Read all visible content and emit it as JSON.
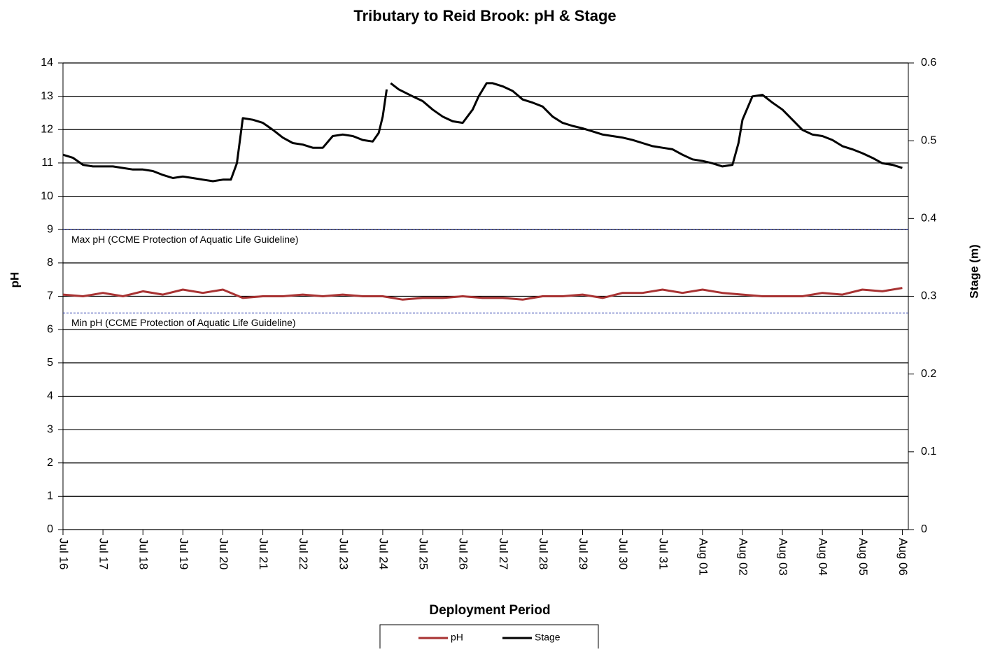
{
  "chart_data": {
    "type": "line",
    "title": "Tributary to Reid Brook: pH & Stage",
    "x_label": "Deployment Period",
    "y_label": "pH",
    "y2_label": "Stage (m)",
    "xlim": [
      0,
      21.15
    ],
    "xticks": [
      {
        "value": 0,
        "label": "Jul 16"
      },
      {
        "value": 1,
        "label": "Jul 17"
      },
      {
        "value": 2,
        "label": "Jul 18"
      },
      {
        "value": 3,
        "label": "Jul 19"
      },
      {
        "value": 4,
        "label": "Jul 20"
      },
      {
        "value": 5,
        "label": "Jul 21"
      },
      {
        "value": 6,
        "label": "Jul 22"
      },
      {
        "value": 7,
        "label": "Jul 23"
      },
      {
        "value": 8,
        "label": "Jul 24"
      },
      {
        "value": 9,
        "label": "Jul 25"
      },
      {
        "value": 10,
        "label": "Jul 26"
      },
      {
        "value": 11,
        "label": "Jul 27"
      },
      {
        "value": 12,
        "label": "Jul 28"
      },
      {
        "value": 13,
        "label": "Jul 29"
      },
      {
        "value": 14,
        "label": "Jul 30"
      },
      {
        "value": 15,
        "label": "Jul 31"
      },
      {
        "value": 16,
        "label": "Aug 01"
      },
      {
        "value": 17,
        "label": "Aug 02"
      },
      {
        "value": 18,
        "label": "Aug 03"
      },
      {
        "value": 19,
        "label": "Aug 04"
      },
      {
        "value": 20,
        "label": "Aug 05"
      },
      {
        "value": 21,
        "label": "Aug 06"
      }
    ],
    "ylim": [
      0,
      14
    ],
    "yticks": [
      0,
      1,
      2,
      3,
      4,
      5,
      6,
      7,
      8,
      9,
      10,
      11,
      12,
      13,
      14
    ],
    "y2lim": [
      0,
      0.6
    ],
    "y2ticks": [
      0,
      0.1,
      0.2,
      0.3,
      0.4,
      0.5,
      0.6
    ],
    "grid": true,
    "reference_lines": [
      {
        "value": 9,
        "label": "Max pH  (CCME  Protection of Aquatic Life Guideline)",
        "color": "#2233aa"
      },
      {
        "value": 6.5,
        "label": "Min pH  (CCME  Protection of Aquatic Life Guideline)",
        "color": "#2233aa"
      }
    ],
    "series": [
      {
        "name": "pH",
        "color": "#a83232",
        "x": [
          0,
          0.5,
          1,
          1.5,
          2,
          2.5,
          3,
          3.5,
          4,
          4.5,
          5,
          5.5,
          6,
          6.5,
          7,
          7.5,
          8,
          8.5,
          9,
          9.5,
          10,
          10.5,
          11,
          11.5,
          12,
          12.5,
          13,
          13.5,
          14,
          14.5,
          15,
          15.5,
          16,
          16.5,
          17,
          17.5,
          18,
          18.5,
          19,
          19.5,
          20,
          20.5,
          21
        ],
        "values": [
          7.05,
          7.0,
          7.1,
          7.0,
          7.15,
          7.05,
          7.2,
          7.1,
          7.2,
          6.95,
          7.0,
          7.0,
          7.05,
          7.0,
          7.05,
          7.0,
          7.0,
          6.9,
          6.95,
          6.95,
          7.0,
          6.95,
          6.95,
          6.9,
          7.0,
          7.0,
          7.05,
          6.95,
          7.1,
          7.1,
          7.2,
          7.1,
          7.2,
          7.1,
          7.05,
          7.0,
          7.0,
          7.0,
          7.1,
          7.05,
          7.2,
          7.15,
          7.25
        ]
      },
      {
        "name": "Stage",
        "color": "#000000",
        "axis": "y2",
        "x": [
          0,
          0.25,
          0.5,
          0.75,
          1,
          1.25,
          1.5,
          1.75,
          2,
          2.25,
          2.5,
          2.75,
          3,
          3.25,
          3.5,
          3.75,
          4,
          4.2,
          4.35,
          4.5,
          4.75,
          5,
          5.25,
          5.5,
          5.75,
          6,
          6.25,
          6.5,
          6.75,
          7,
          7.25,
          7.5,
          7.75,
          7.9,
          8,
          8.1,
          8.15,
          8.2,
          8.4,
          8.75,
          9,
          9.25,
          9.5,
          9.75,
          10,
          10.25,
          10.4,
          10.6,
          10.75,
          11,
          11.25,
          11.5,
          11.75,
          12,
          12.25,
          12.5,
          12.75,
          13,
          13.25,
          13.5,
          13.75,
          14,
          14.25,
          14.5,
          14.75,
          15,
          15.25,
          15.5,
          15.75,
          16,
          16.25,
          16.5,
          16.75,
          16.9,
          17,
          17.25,
          17.5,
          17.75,
          18,
          18.25,
          18.5,
          18.75,
          19,
          19.25,
          19.5,
          19.75,
          20,
          20.25,
          20.5,
          20.75,
          21
        ],
        "values": [
          0.482,
          0.478,
          0.469,
          0.467,
          0.467,
          0.467,
          0.465,
          0.463,
          0.463,
          0.461,
          0.456,
          0.452,
          0.454,
          0.452,
          0.45,
          0.448,
          0.45,
          0.45,
          0.471,
          0.529,
          0.527,
          0.523,
          0.514,
          0.504,
          0.497,
          0.495,
          0.491,
          0.491,
          0.506,
          0.508,
          0.506,
          0.501,
          0.499,
          0.51,
          0.531,
          0.566,
          null,
          0.574,
          0.566,
          0.557,
          0.551,
          0.54,
          0.531,
          0.525,
          0.523,
          0.54,
          0.557,
          0.574,
          0.574,
          0.57,
          0.564,
          0.553,
          0.549,
          0.544,
          0.531,
          0.523,
          0.519,
          0.516,
          0.512,
          0.508,
          0.506,
          0.504,
          0.501,
          0.497,
          0.493,
          0.491,
          0.489,
          0.482,
          0.476,
          0.474,
          0.471,
          0.467,
          0.469,
          0.497,
          0.527,
          0.557,
          0.559,
          0.549,
          0.54,
          0.527,
          0.514,
          0.508,
          0.506,
          0.501,
          0.493,
          0.489,
          0.484,
          0.478,
          0.471,
          0.469,
          0.465
        ]
      }
    ],
    "legend": "bottom"
  }
}
